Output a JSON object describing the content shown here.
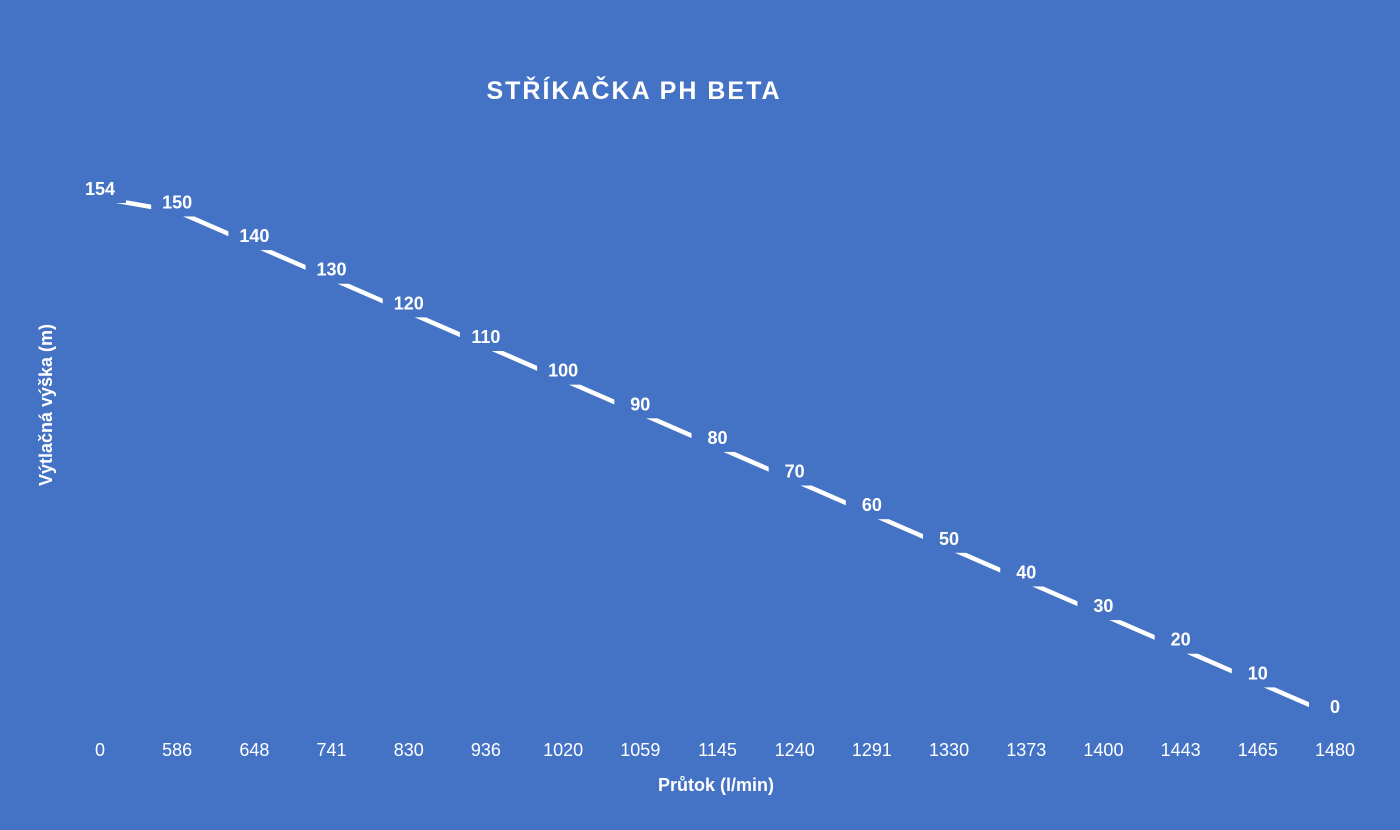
{
  "chart_data": {
    "type": "line",
    "title": "STŘÍKAČKA PH BETA",
    "xlabel": "Průtok (l/min)",
    "ylabel": "Výtlačná výška (m)",
    "categories": [
      "0",
      "586",
      "648",
      "741",
      "830",
      "936",
      "1020",
      "1059",
      "1145",
      "1240",
      "1291",
      "1330",
      "1373",
      "1400",
      "1443",
      "1465",
      "1480"
    ],
    "values": [
      154,
      150,
      140,
      130,
      120,
      110,
      100,
      90,
      80,
      70,
      60,
      50,
      40,
      30,
      20,
      10,
      0
    ],
    "ylim": [
      0,
      154
    ],
    "grid": false,
    "legend": "none",
    "data_labels": true,
    "drop_lines": true,
    "colors": {
      "background": "#4472C4",
      "line": "#FFFFFF",
      "text": "#FFFFFF"
    }
  }
}
